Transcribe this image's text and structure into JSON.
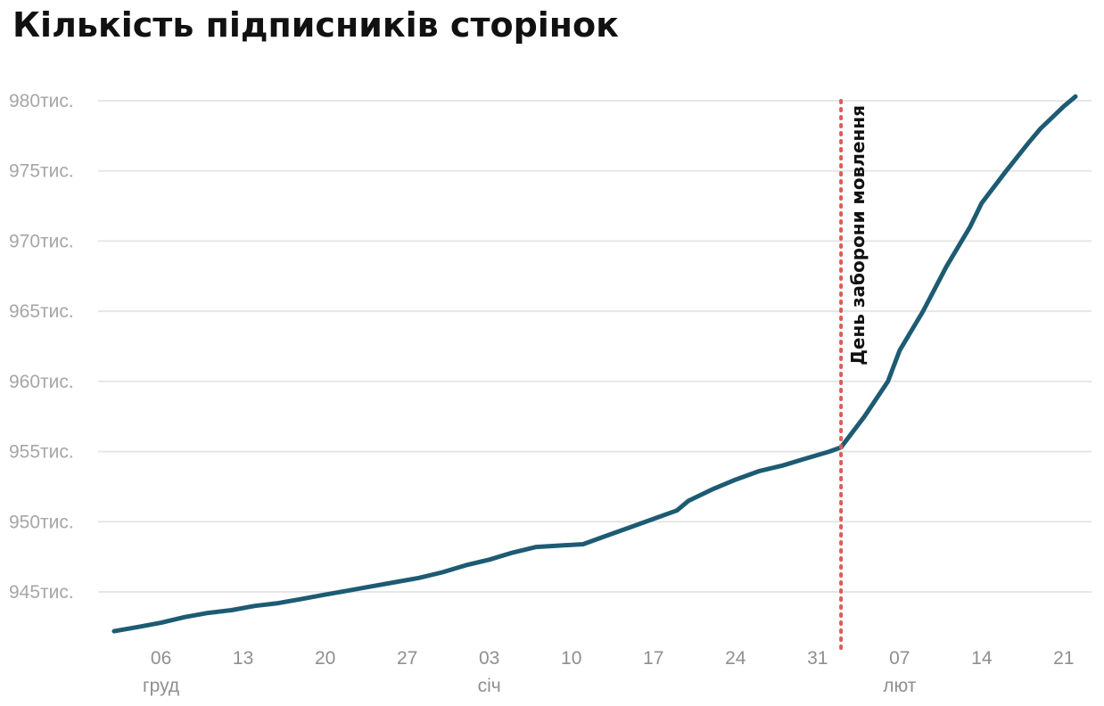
{
  "chart_data": {
    "type": "line",
    "title": "Кількість підписників сторінок",
    "xlabel": "",
    "ylabel": "",
    "ylim": [
      942000,
      981000
    ],
    "y_ticks": [
      945000,
      950000,
      955000,
      960000,
      965000,
      970000,
      975000,
      980000
    ],
    "y_tick_labels": [
      "945тис.",
      "950тис.",
      "955тис.",
      "960тис.",
      "965тис.",
      "970тис.",
      "975тис.",
      "980тис."
    ],
    "x_range": [
      "2021-12-02",
      "2022-02-22"
    ],
    "x_ticks": [
      "2021-12-06",
      "2021-12-13",
      "2021-12-20",
      "2021-12-27",
      "2022-01-03",
      "2022-01-10",
      "2022-01-17",
      "2022-01-24",
      "2022-01-31",
      "2022-02-07",
      "2022-02-14",
      "2022-02-21"
    ],
    "x_tick_labels": [
      "06",
      "13",
      "20",
      "27",
      "03",
      "10",
      "17",
      "24",
      "31",
      "07",
      "14",
      "21"
    ],
    "month_labels": [
      {
        "date": "2021-12-06",
        "label": "груд"
      },
      {
        "date": "2022-01-03",
        "label": "січ"
      },
      {
        "date": "2022-02-07",
        "label": "лют"
      }
    ],
    "grid": true,
    "line_color": "#1d5b73",
    "annotation": {
      "date": "2022-02-02",
      "label": "День заборони мовлення",
      "color": "#e05a5a"
    },
    "series": [
      {
        "points": [
          [
            "2021-12-02",
            942200
          ],
          [
            "2021-12-04",
            942500
          ],
          [
            "2021-12-06",
            942800
          ],
          [
            "2021-12-08",
            943200
          ],
          [
            "2021-12-10",
            943500
          ],
          [
            "2021-12-12",
            943700
          ],
          [
            "2021-12-14",
            944000
          ],
          [
            "2021-12-16",
            944200
          ],
          [
            "2021-12-18",
            944500
          ],
          [
            "2021-12-20",
            944800
          ],
          [
            "2021-12-22",
            945100
          ],
          [
            "2021-12-24",
            945400
          ],
          [
            "2021-12-26",
            945700
          ],
          [
            "2021-12-28",
            946000
          ],
          [
            "2021-12-30",
            946400
          ],
          [
            "2022-01-01",
            946900
          ],
          [
            "2022-01-03",
            947300
          ],
          [
            "2022-01-05",
            947800
          ],
          [
            "2022-01-07",
            948200
          ],
          [
            "2022-01-09",
            948300
          ],
          [
            "2022-01-11",
            948400
          ],
          [
            "2022-01-13",
            949000
          ],
          [
            "2022-01-15",
            949600
          ],
          [
            "2022-01-17",
            950200
          ],
          [
            "2022-01-19",
            950800
          ],
          [
            "2022-01-20",
            951500
          ],
          [
            "2022-01-22",
            952300
          ],
          [
            "2022-01-24",
            953000
          ],
          [
            "2022-01-26",
            953600
          ],
          [
            "2022-01-28",
            954000
          ],
          [
            "2022-01-30",
            954500
          ],
          [
            "2022-02-01",
            955000
          ],
          [
            "2022-02-02",
            955300
          ],
          [
            "2022-02-04",
            957500
          ],
          [
            "2022-02-06",
            960000
          ],
          [
            "2022-02-07",
            962200
          ],
          [
            "2022-02-09",
            965000
          ],
          [
            "2022-02-11",
            968200
          ],
          [
            "2022-02-13",
            971000
          ],
          [
            "2022-02-14",
            972700
          ],
          [
            "2022-02-16",
            974900
          ],
          [
            "2022-02-18",
            977000
          ],
          [
            "2022-02-19",
            978000
          ],
          [
            "2022-02-21",
            979600
          ],
          [
            "2022-02-22",
            980300
          ]
        ]
      }
    ]
  }
}
